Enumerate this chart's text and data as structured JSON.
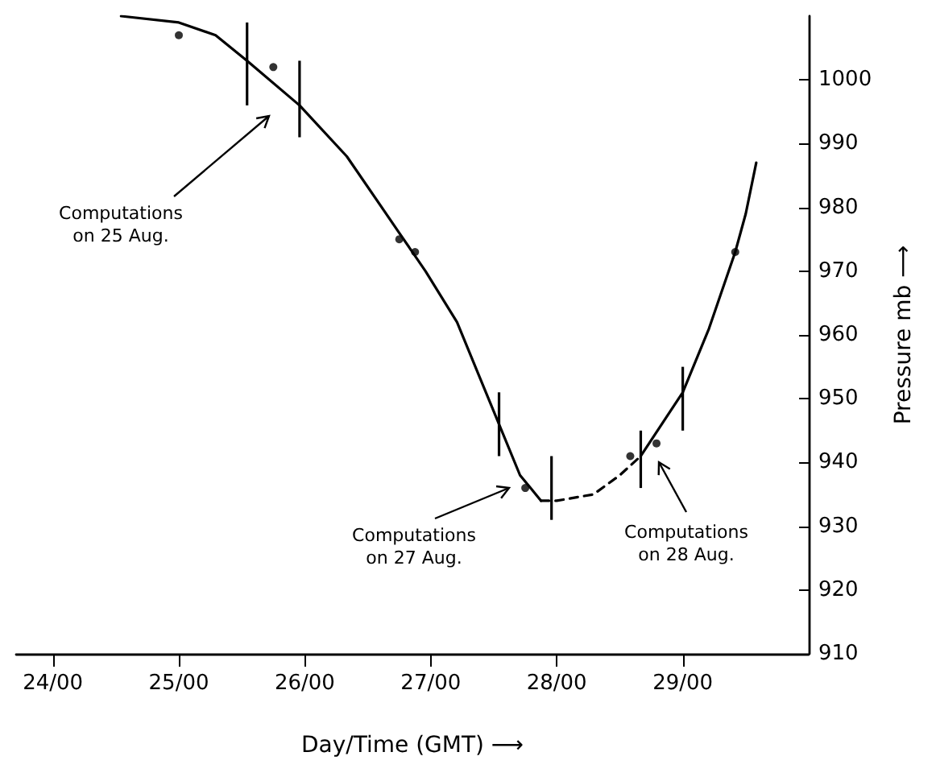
{
  "chart_data": {
    "type": "line",
    "xlabel": "Day/Time (GMT) ⟶",
    "ylabel": "Pressure mb ⟶",
    "xlim": [
      "--08-23T17:00",
      "--08-30T00:00"
    ],
    "xticks": [
      {
        "value": "--08-24T00:00",
        "label": "24/00"
      },
      {
        "value": "--08-25T00:00",
        "label": "25/00"
      },
      {
        "value": "--08-26T00:00",
        "label": "26/00"
      },
      {
        "value": "--08-27T00:00",
        "label": "27/00"
      },
      {
        "value": "--08-28T00:00",
        "label": "28/00"
      },
      {
        "value": "--08-29T00:00",
        "label": "29/00"
      }
    ],
    "ylim": [
      910,
      1010
    ],
    "yticks": [
      910,
      920,
      930,
      940,
      950,
      960,
      970,
      980,
      990,
      1000
    ],
    "grid": false,
    "series": [
      {
        "color": "#000000",
        "marker": "none",
        "line_style": "solid",
        "x": [
          "--08-24T13:00",
          "--08-25T00:00",
          "--08-25T07:00",
          "--08-25T13:00",
          "--08-25T23:00",
          "--08-26T08:00",
          "--08-26T18:00",
          "--08-26T23:00",
          "--08-27T05:00",
          "--08-27T09:00",
          "--08-27T13:00",
          "--08-27T17:00",
          "--08-27T19:00",
          "--08-27T21:00"
        ],
        "values": [
          1010,
          1009,
          1007,
          1003,
          996,
          988,
          976,
          970,
          962,
          954,
          946,
          938,
          936,
          934
        ]
      },
      {
        "color": "#000000",
        "marker": "none",
        "line_style": "dashed",
        "x": [
          "--08-27T21:00",
          "--08-28T00:00",
          "--08-28T07:00",
          "--08-28T12:00",
          "--08-28T16:00"
        ],
        "values": [
          934,
          934,
          935,
          938,
          941
        ]
      },
      {
        "color": "#000000",
        "marker": "none",
        "line_style": "solid",
        "x": [
          "--08-28T16:00",
          "--08-29T00:00",
          "--08-29T05:00",
          "--08-29T10:00",
          "--08-29T12:00",
          "--08-29T14:00"
        ],
        "values": [
          941,
          951,
          961,
          973,
          979,
          987
        ]
      },
      {
        "type": "scatter",
        "color": "#000000",
        "marker": "circle",
        "x": [
          "--08-25T00:00",
          "--08-25T18:00",
          "--08-26T18:00",
          "--08-26T21:00",
          "--08-27T18:00",
          "--08-28T14:00",
          "--08-28T19:00",
          "--08-29T10:00"
        ],
        "values": [
          1007,
          1002,
          975,
          973,
          936,
          941,
          943,
          973
        ]
      },
      {
        "type": "bar",
        "color": "#000000",
        "x": [
          "--08-25T13:00",
          "--08-25T23:00",
          "--08-27T13:00",
          "--08-27T23:00",
          "--08-28T16:00",
          "--08-29T00:00"
        ],
        "base": [
          996,
          991,
          941,
          931,
          936,
          945
        ],
        "values": [
          13,
          12,
          10,
          10,
          9,
          10
        ]
      }
    ],
    "annotations": [
      "Computations\non 25 Aug.",
      "Computations\non 27 Aug.",
      "Computations\non 28 Aug."
    ]
  }
}
